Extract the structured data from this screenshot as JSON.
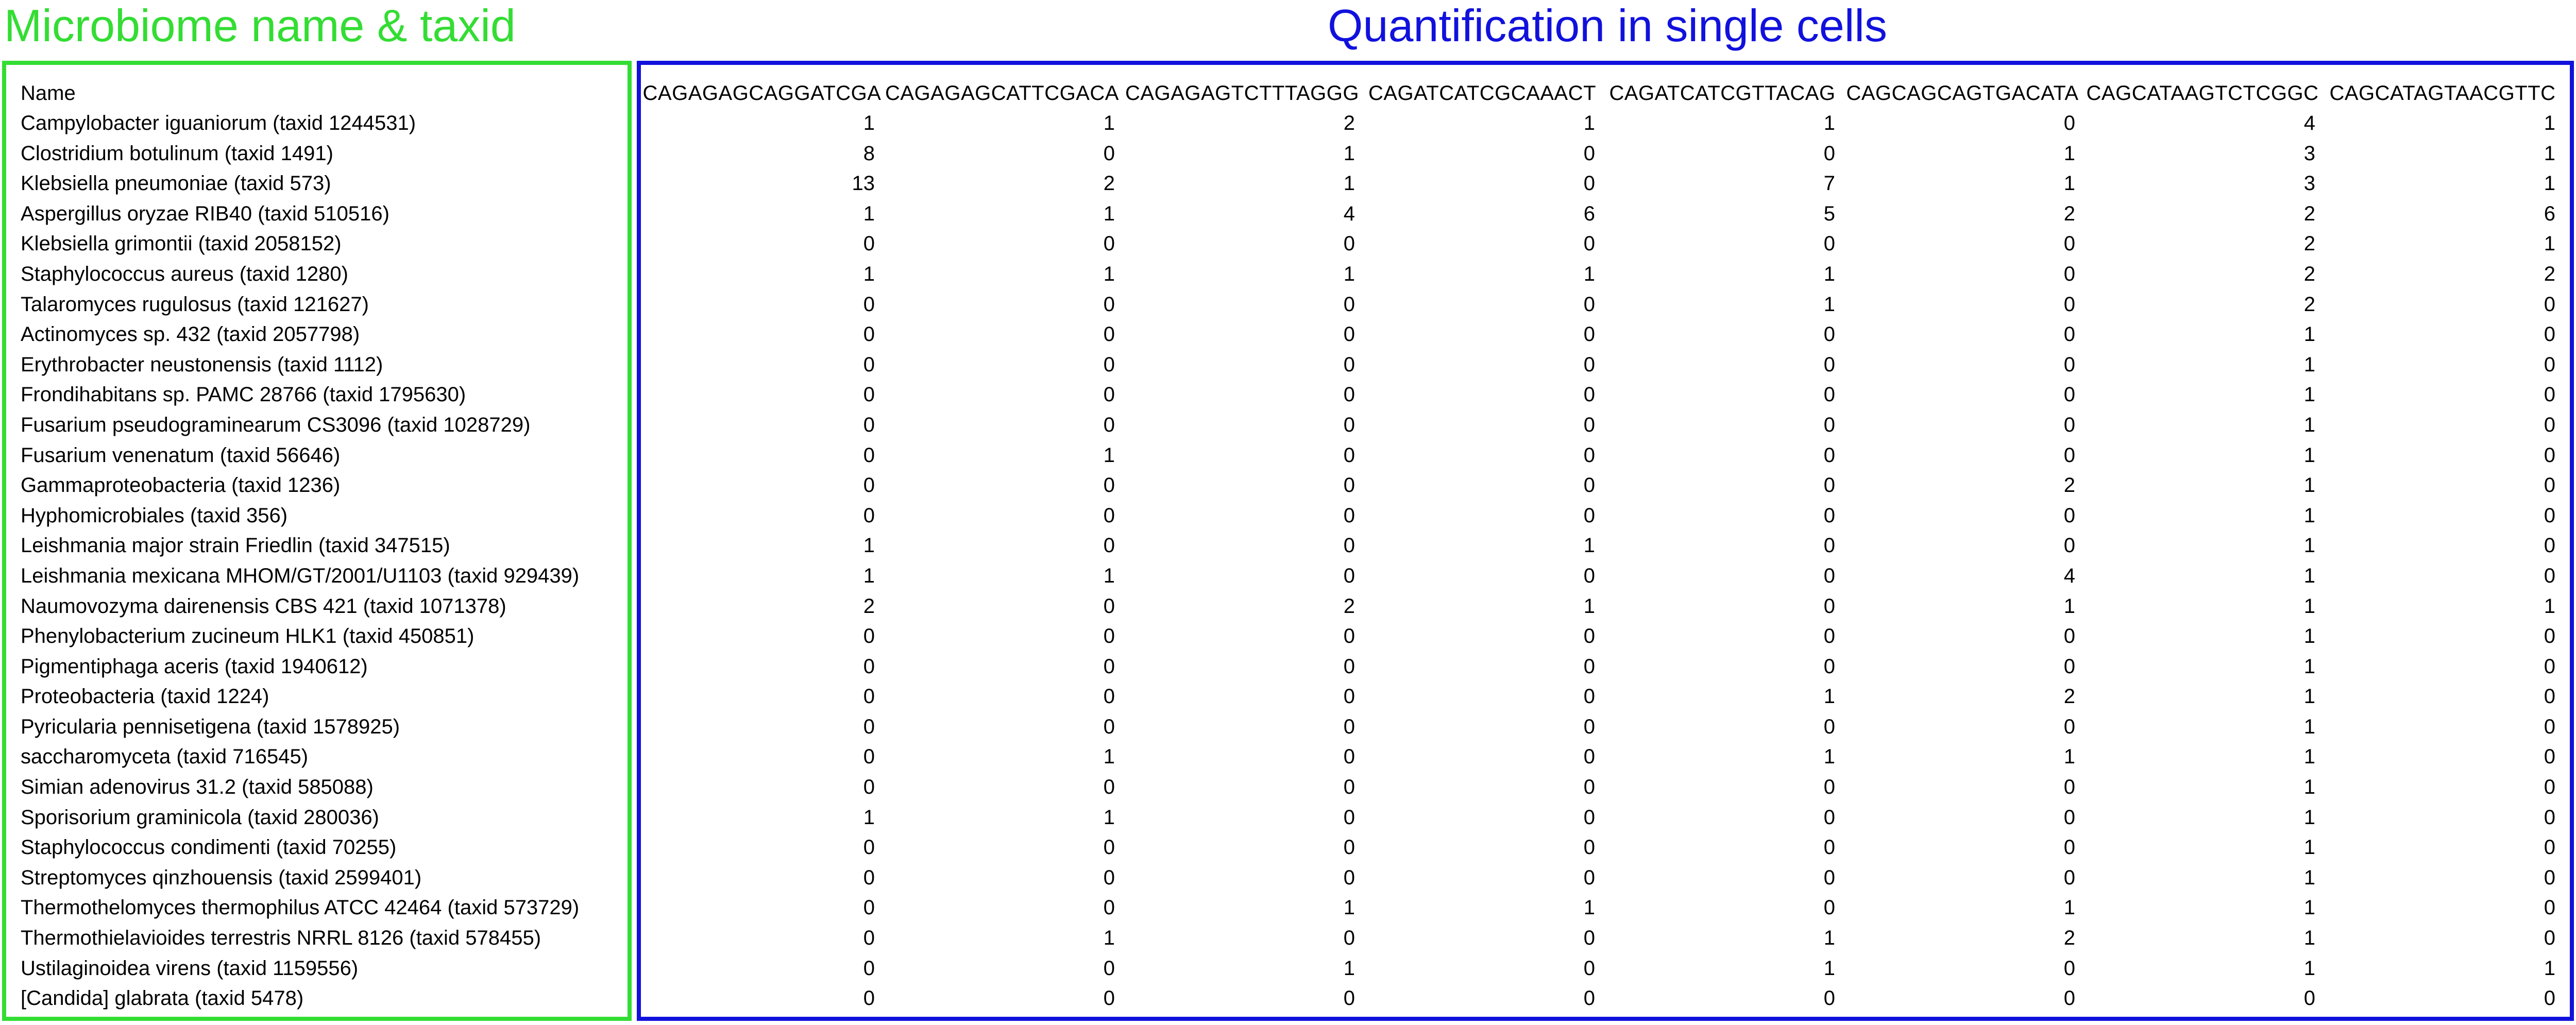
{
  "titles": {
    "left": "Microbiome name & taxid",
    "right": "Quantification in single cells"
  },
  "table": {
    "name_header": "Name",
    "columns": [
      "CAGAGAGCAGGATCGA",
      "CAGAGAGCATTCGACA",
      "CAGAGAGTCTTTAGGG",
      "CAGATCATCGCAAACT",
      "CAGATCATCGTTACAG",
      "CAGCAGCAGTGACATA",
      "CAGCATAAGTCTCGGC",
      "CAGCATAGTAACGTTC"
    ],
    "rows": [
      {
        "name": "Campylobacter iguaniorum (taxid 1244531)",
        "values": [
          "1",
          "1",
          "2",
          "1",
          "1",
          "0",
          "4",
          "1"
        ]
      },
      {
        "name": "Clostridium botulinum (taxid 1491)",
        "values": [
          "8",
          "0",
          "1",
          "0",
          "0",
          "1",
          "3",
          "1"
        ]
      },
      {
        "name": "Klebsiella pneumoniae (taxid 573)",
        "values": [
          "13",
          "2",
          "1",
          "0",
          "7",
          "1",
          "3",
          "1"
        ]
      },
      {
        "name": "Aspergillus oryzae RIB40 (taxid 510516)",
        "values": [
          "1",
          "1",
          "4",
          "6",
          "5",
          "2",
          "2",
          "6"
        ]
      },
      {
        "name": "Klebsiella grimontii (taxid 2058152)",
        "values": [
          "0",
          "0",
          "0",
          "0",
          "0",
          "0",
          "2",
          "1"
        ]
      },
      {
        "name": "Staphylococcus aureus (taxid 1280)",
        "values": [
          "1",
          "1",
          "1",
          "1",
          "1",
          "0",
          "2",
          "2"
        ]
      },
      {
        "name": "Talaromyces rugulosus (taxid 121627)",
        "values": [
          "0",
          "0",
          "0",
          "0",
          "1",
          "0",
          "2",
          "0"
        ]
      },
      {
        "name": "Actinomyces sp. 432 (taxid 2057798)",
        "values": [
          "0",
          "0",
          "0",
          "0",
          "0",
          "0",
          "1",
          "0"
        ]
      },
      {
        "name": "Erythrobacter neustonensis (taxid 1112)",
        "values": [
          "0",
          "0",
          "0",
          "0",
          "0",
          "0",
          "1",
          "0"
        ]
      },
      {
        "name": "Frondihabitans sp. PAMC 28766 (taxid 1795630)",
        "values": [
          "0",
          "0",
          "0",
          "0",
          "0",
          "0",
          "1",
          "0"
        ]
      },
      {
        "name": "Fusarium pseudograminearum CS3096 (taxid 1028729)",
        "values": [
          "0",
          "0",
          "0",
          "0",
          "0",
          "0",
          "1",
          "0"
        ]
      },
      {
        "name": "Fusarium venenatum (taxid 56646)",
        "values": [
          "0",
          "1",
          "0",
          "0",
          "0",
          "0",
          "1",
          "0"
        ]
      },
      {
        "name": "Gammaproteobacteria (taxid 1236)",
        "values": [
          "0",
          "0",
          "0",
          "0",
          "0",
          "2",
          "1",
          "0"
        ]
      },
      {
        "name": "Hyphomicrobiales (taxid 356)",
        "values": [
          "0",
          "0",
          "0",
          "0",
          "0",
          "0",
          "1",
          "0"
        ]
      },
      {
        "name": "Leishmania major strain Friedlin (taxid 347515)",
        "values": [
          "1",
          "0",
          "0",
          "1",
          "0",
          "0",
          "1",
          "0"
        ]
      },
      {
        "name": "Leishmania mexicana MHOM/GT/2001/U1103 (taxid 929439)",
        "values": [
          "1",
          "1",
          "0",
          "0",
          "0",
          "4",
          "1",
          "0"
        ]
      },
      {
        "name": "Naumovozyma dairenensis CBS 421 (taxid 1071378)",
        "values": [
          "2",
          "0",
          "2",
          "1",
          "0",
          "1",
          "1",
          "1"
        ]
      },
      {
        "name": "Phenylobacterium zucineum HLK1 (taxid 450851)",
        "values": [
          "0",
          "0",
          "0",
          "0",
          "0",
          "0",
          "1",
          "0"
        ]
      },
      {
        "name": "Pigmentiphaga aceris (taxid 1940612)",
        "values": [
          "0",
          "0",
          "0",
          "0",
          "0",
          "0",
          "1",
          "0"
        ]
      },
      {
        "name": "Proteobacteria (taxid 1224)",
        "values": [
          "0",
          "0",
          "0",
          "0",
          "1",
          "2",
          "1",
          "0"
        ]
      },
      {
        "name": "Pyricularia pennisetigena (taxid 1578925)",
        "values": [
          "0",
          "0",
          "0",
          "0",
          "0",
          "0",
          "1",
          "0"
        ]
      },
      {
        "name": "saccharomyceta (taxid 716545)",
        "values": [
          "0",
          "1",
          "0",
          "0",
          "1",
          "1",
          "1",
          "0"
        ]
      },
      {
        "name": "Simian adenovirus 31.2 (taxid 585088)",
        "values": [
          "0",
          "0",
          "0",
          "0",
          "0",
          "0",
          "1",
          "0"
        ]
      },
      {
        "name": "Sporisorium graminicola (taxid 280036)",
        "values": [
          "1",
          "1",
          "0",
          "0",
          "0",
          "0",
          "1",
          "0"
        ]
      },
      {
        "name": "Staphylococcus condimenti (taxid 70255)",
        "values": [
          "0",
          "0",
          "0",
          "0",
          "0",
          "0",
          "1",
          "0"
        ]
      },
      {
        "name": "Streptomyces qinzhouensis (taxid 2599401)",
        "values": [
          "0",
          "0",
          "0",
          "0",
          "0",
          "0",
          "1",
          "0"
        ]
      },
      {
        "name": "Thermothelomyces thermophilus ATCC 42464 (taxid 573729)",
        "values": [
          "0",
          "0",
          "1",
          "1",
          "0",
          "1",
          "1",
          "0"
        ]
      },
      {
        "name": "Thermothielavioides terrestris NRRL 8126 (taxid 578455)",
        "values": [
          "0",
          "1",
          "0",
          "0",
          "1",
          "2",
          "1",
          "0"
        ]
      },
      {
        "name": "Ustilaginoidea virens (taxid 1159556)",
        "values": [
          "0",
          "0",
          "1",
          "0",
          "1",
          "0",
          "1",
          "1"
        ]
      },
      {
        "name": "[Candida] glabrata (taxid 5478)",
        "values": [
          "0",
          "0",
          "0",
          "0",
          "0",
          "0",
          "0",
          "0"
        ]
      }
    ]
  },
  "colors": {
    "left_accent": "#33dd33",
    "right_accent": "#1111dd"
  }
}
